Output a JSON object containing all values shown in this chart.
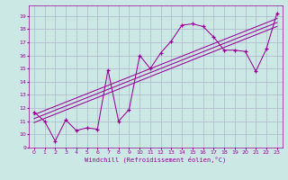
{
  "xlabel": "Windchill (Refroidissement éolien,°C)",
  "background_color": "#cce8e4",
  "grid_color": "#aab8cc",
  "line_color": "#990099",
  "xlim": [
    -0.5,
    23.5
  ],
  "ylim": [
    9,
    19.8
  ],
  "xticks": [
    0,
    1,
    2,
    3,
    4,
    5,
    6,
    7,
    8,
    9,
    10,
    11,
    12,
    13,
    14,
    15,
    16,
    17,
    18,
    19,
    20,
    21,
    22,
    23
  ],
  "yticks": [
    9,
    10,
    11,
    12,
    13,
    14,
    15,
    16,
    17,
    18,
    19
  ],
  "main_series_x": [
    0,
    1,
    2,
    3,
    4,
    5,
    6,
    7,
    8,
    9,
    10,
    11,
    12,
    13,
    14,
    15,
    16,
    17,
    18,
    19,
    20,
    21,
    22,
    23
  ],
  "main_series_y": [
    11.7,
    11.0,
    9.5,
    11.1,
    10.3,
    10.5,
    10.4,
    14.9,
    11.0,
    11.9,
    16.0,
    15.0,
    16.2,
    17.1,
    18.3,
    18.4,
    18.2,
    17.4,
    16.4,
    16.4,
    16.3,
    14.8,
    16.5,
    19.2
  ],
  "reg_line1_x": [
    0,
    23
  ],
  "reg_line1_y": [
    11.5,
    18.8
  ],
  "reg_line2_x": [
    0,
    23
  ],
  "reg_line2_y": [
    11.2,
    18.5
  ],
  "reg_line3_x": [
    0,
    23
  ],
  "reg_line3_y": [
    10.9,
    18.2
  ]
}
